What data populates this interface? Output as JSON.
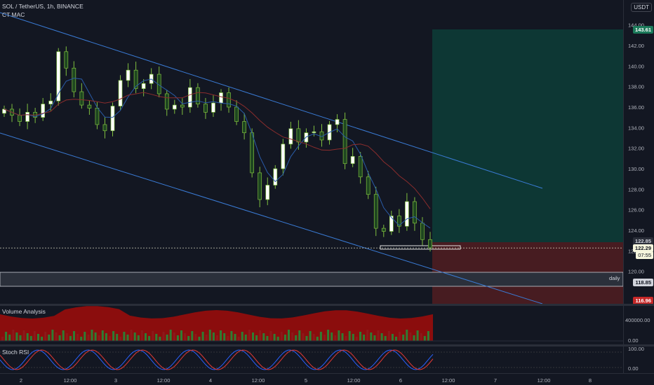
{
  "header": {
    "symbol_title": "SOL / TetherUS, 1h, BINANCE",
    "indicator_label": "CT MAC",
    "currency_button": "USDT"
  },
  "price_axis": {
    "ticks": [
      "144.00",
      "142.00",
      "140.00",
      "138.00",
      "136.00",
      "134.00",
      "132.00",
      "130.00",
      "128.00",
      "126.00",
      "124.00",
      "122.00",
      "120.00"
    ]
  },
  "price_tags": {
    "target": "143.61",
    "entry": "122.85",
    "last": "122.29",
    "countdown": "07:55",
    "level": "118.85",
    "stop": "116.96"
  },
  "level_label": "daily",
  "volume_pane": {
    "title": "Volume Analysis",
    "ticks": [
      "400000.00",
      "0.00"
    ]
  },
  "rsi_pane": {
    "title": "Stoch RSI",
    "ticks": [
      "100.00",
      "0.00"
    ]
  },
  "time_axis": {
    "labels": [
      "2",
      "12:00",
      "3",
      "12:00",
      "4",
      "12:00",
      "5",
      "12:00",
      "6",
      "12:00",
      "7",
      "12:00",
      "8"
    ]
  },
  "colors": {
    "background": "#131722",
    "up_candle": "#ffffff",
    "down_candle": "#1e4620",
    "wick": "#7fbf3f",
    "channel": "#3a7bd5",
    "target_zone": "#0d3b36",
    "stop_zone": "#4a1c22",
    "volume_fill": "#8b0d0d"
  },
  "chart_data": {
    "type": "candlestick",
    "title": "SOL / TetherUS, 1h, BINANCE",
    "ylim": [
      116.5,
      144.5
    ],
    "approx_close_path": [
      135.8,
      135.2,
      134.6,
      135.5,
      135.0,
      136.3,
      136.6,
      141.4,
      139.8,
      137.5,
      136.2,
      135.9,
      134.3,
      133.7,
      136.1,
      138.6,
      139.6,
      137.8,
      138.3,
      139.2,
      137.3,
      135.8,
      136.2,
      136.0,
      137.9,
      136.3,
      135.5,
      136.4,
      137.4,
      136.0,
      134.6,
      133.5,
      129.6,
      127.0,
      128.4,
      130.0,
      132.4,
      133.9,
      132.6,
      133.5,
      133.6,
      132.8,
      134.3,
      134.8,
      130.5,
      131.2,
      129.2,
      127.5,
      124.2,
      123.9,
      125.4,
      124.4,
      126.8,
      124.7,
      123.1,
      122.29
    ]
  }
}
